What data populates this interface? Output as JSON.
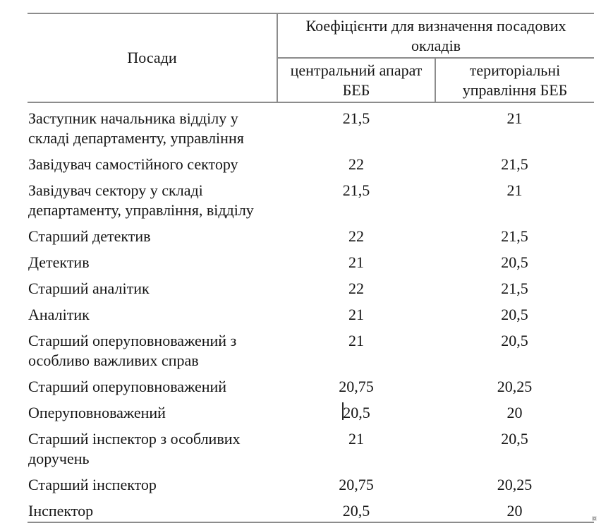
{
  "table": {
    "col1_header": "Посади",
    "group_header": "Коефіцієнти для визначення посадових\nокладів",
    "col2_header": "центральний апарат\nБЕБ",
    "col3_header": "територіальні\nуправління БЕБ",
    "rows": [
      {
        "position": "Заступник начальника відділу у\nскладі департаменту, управління",
        "central": "21,5",
        "territorial": "21"
      },
      {
        "position": "Завідувач самостійного сектору",
        "central": "22",
        "territorial": "21,5"
      },
      {
        "position": "Завідувач сектору у складі\nдепартаменту, управління, відділу",
        "central": "21,5",
        "territorial": "21"
      },
      {
        "position": "Старший детектив",
        "central": "22",
        "territorial": "21,5"
      },
      {
        "position": "Детектив",
        "central": "21",
        "territorial": "20,5"
      },
      {
        "position": "Старший аналітик",
        "central": "22",
        "territorial": "21,5"
      },
      {
        "position": "Аналітик",
        "central": "21",
        "territorial": "20,5"
      },
      {
        "position": "Старший оперуповноважений з\nособливо важливих справ",
        "central": "21",
        "territorial": "20,5"
      },
      {
        "position": "Старший оперуповноважений",
        "central": "20,75",
        "territorial": "20,25"
      },
      {
        "position": "Оперуповноважений",
        "central": "20,5",
        "territorial": "20"
      },
      {
        "position": "Старший інспектор з особливих\nдоручень",
        "central": "21",
        "territorial": "20,5"
      },
      {
        "position": "Старший інспектор",
        "central": "20,75",
        "territorial": "20,25"
      },
      {
        "position": "Інспектор",
        "central": "20,5",
        "territorial": "20"
      }
    ]
  },
  "colors": {
    "background": "#ffffff",
    "text": "#151515",
    "table_lines": "#8c8c8c",
    "caret": "#2a2a2a",
    "resize_handle_border": "#acacac"
  }
}
